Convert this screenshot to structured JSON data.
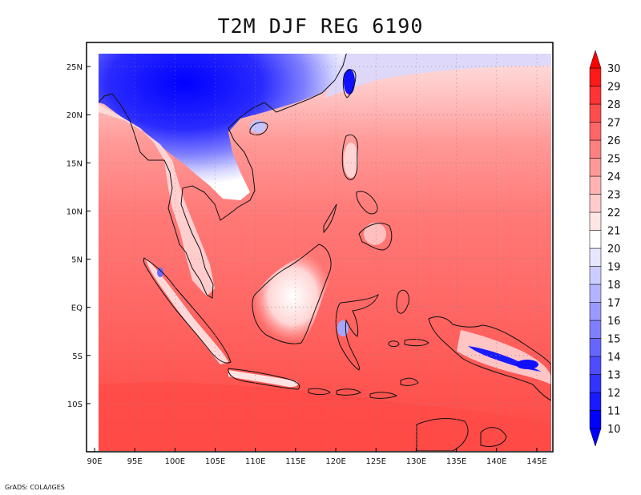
{
  "title": "T2M DJF REG 6190",
  "credit": "GrADS: COLA/IGES",
  "map": {
    "lon_range": [
      89,
      147
    ],
    "lat_range": [
      -15,
      27.5
    ],
    "lon_ticks": [
      "90E",
      "95E",
      "100E",
      "105E",
      "110E",
      "115E",
      "120E",
      "125E",
      "130E",
      "135E",
      "140E",
      "145E"
    ],
    "lat_ticks": [
      "25N",
      "20N",
      "15N",
      "10N",
      "5N",
      "EQ",
      "5S",
      "10S"
    ],
    "grid": true
  },
  "colorbar": {
    "levels": [
      "10",
      "11",
      "12",
      "13",
      "14",
      "15",
      "16",
      "17",
      "18",
      "19",
      "20",
      "21",
      "22",
      "23",
      "24",
      "25",
      "26",
      "27",
      "28",
      "29",
      "30"
    ],
    "colors": [
      "#0000ff",
      "#1a1aff",
      "#3333ff",
      "#4d4dff",
      "#6666ff",
      "#8080ff",
      "#9999ff",
      "#b3b3ff",
      "#ccccff",
      "#e6e6ff",
      "#ffffff",
      "#ffe6e6",
      "#ffcccc",
      "#ffb3b3",
      "#ff9999",
      "#ff8080",
      "#ff6666",
      "#ff4d4d",
      "#ff3333",
      "#ff1a1a"
    ],
    "arrow_low": "#0000ff",
    "arrow_high": "#ff0000"
  },
  "colors": {
    "ocean_warm": "#ff6a66",
    "ocean_south": "#ff4d4d",
    "cold_core": "#0000ff"
  }
}
